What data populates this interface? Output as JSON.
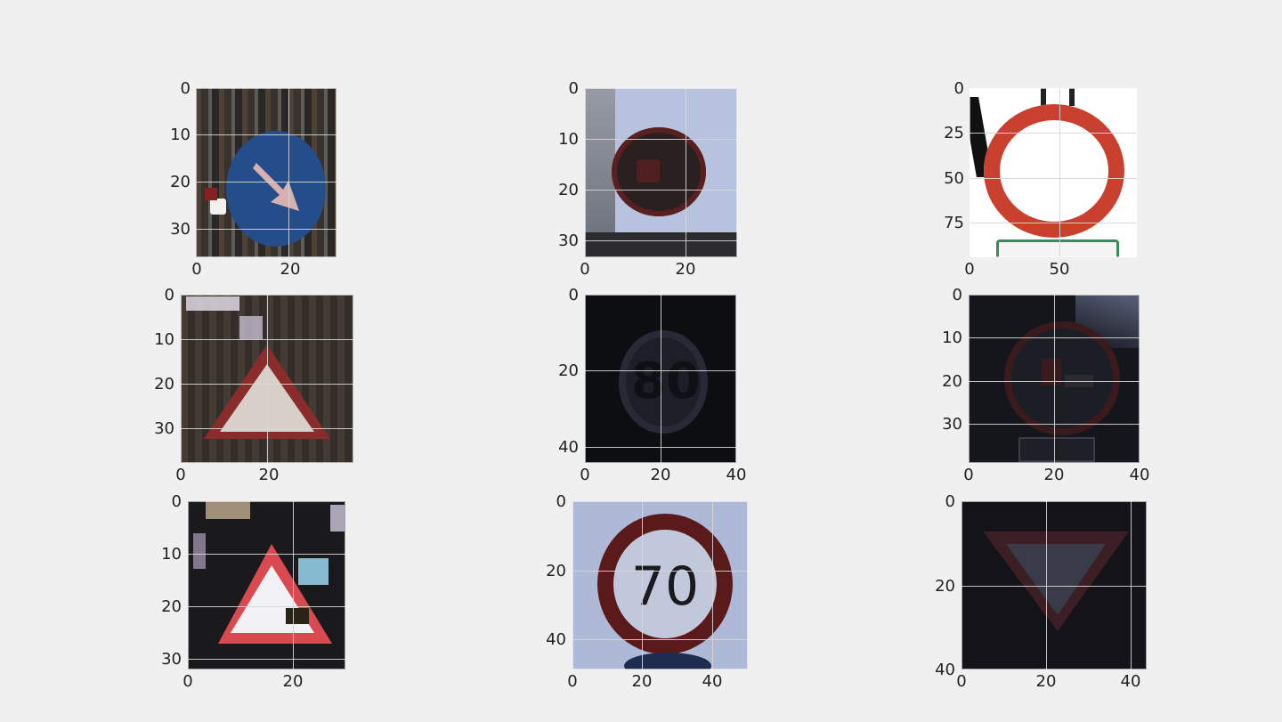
{
  "figure": {
    "background": "#f0f0f0",
    "panels": [
      {
        "id": "p1",
        "subject": "keep-right sign (blue circle, white diagonal arrow)",
        "extent": {
          "width": 30,
          "height": 36
        },
        "yticks": [
          "0",
          "10",
          "20",
          "30"
        ],
        "xticks": [
          "0",
          "20"
        ],
        "colors": {
          "bg": "#2c2a2a",
          "sign": "#244e8a",
          "arrow": "#d8b0b0",
          "accent": "#f4f0ee"
        }
      },
      {
        "id": "p2",
        "subject": "dark round prohibitory sign against pale sky",
        "extent": {
          "width": 30,
          "height": 33
        },
        "yticks": [
          "0",
          "10",
          "20",
          "30"
        ],
        "xticks": [
          "0",
          "20"
        ],
        "colors": {
          "bg": "#b7c3de",
          "sign": "#2a2020",
          "ring": "#5a1f1f"
        }
      },
      {
        "id": "p3",
        "subject": "no-vehicles sign (red ring, white center)",
        "extent": {
          "width": 90,
          "height": 95
        },
        "yticks": [
          "0",
          "25",
          "50",
          "75"
        ],
        "xticks": [
          "0",
          "50"
        ],
        "colors": {
          "bg": "#ffffff",
          "ring": "#c9412e",
          "center": "#ffffff"
        }
      },
      {
        "id": "p4",
        "subject": "warning triangle in dark foliage",
        "extent": {
          "width": 38,
          "height": 38
        },
        "yticks": [
          "0",
          "10",
          "20",
          "30"
        ],
        "xticks": [
          "0",
          "20"
        ],
        "colors": {
          "bg": "#3a3430",
          "triangle": "#8a2c2c",
          "inner": "#d8cfc8"
        }
      },
      {
        "id": "p5",
        "subject": "very dark speed limit 80 sign",
        "extent": {
          "width": 40,
          "height": 44
        },
        "yticks": [
          "0",
          "20",
          "40"
        ],
        "xticks": [
          "0",
          "20",
          "40"
        ],
        "colors": {
          "bg": "#0d0e12",
          "sign": "#222630"
        }
      },
      {
        "id": "p6",
        "subject": "dark no-trucks-overtaking sign",
        "extent": {
          "width": 40,
          "height": 39
        },
        "yticks": [
          "0",
          "10",
          "20",
          "30"
        ],
        "xticks": [
          "0",
          "20",
          "40"
        ],
        "colors": {
          "bg": "#14161c",
          "ring": "#3a1a1c",
          "inner": "#1c1e26"
        }
      },
      {
        "id": "p7",
        "subject": "bright warning triangle with noisy pixels",
        "extent": {
          "width": 30,
          "height": 32
        },
        "yticks": [
          "0",
          "10",
          "20",
          "30"
        ],
        "xticks": [
          "0",
          "20"
        ],
        "colors": {
          "bg": "#1a1a1c",
          "triangle": "#d84a50",
          "inner": "#f2f2f6"
        }
      },
      {
        "id": "p8",
        "subject": "speed limit 70 sign",
        "extent": {
          "width": 50,
          "height": 48
        },
        "yticks": [
          "0",
          "20",
          "40"
        ],
        "xticks": [
          "0",
          "20",
          "40"
        ],
        "colors": {
          "bg": "#aeb9d8",
          "ring": "#5a1a1a",
          "inner": "#c2c8dc",
          "text": "#1a1a20"
        }
      },
      {
        "id": "p9",
        "subject": "dark yield sign (inverted triangle)",
        "extent": {
          "width": 44,
          "height": 40
        },
        "yticks": [
          "0",
          "20",
          "40"
        ],
        "xticks": [
          "0",
          "20",
          "40"
        ],
        "colors": {
          "bg": "#14131a",
          "triangle": "#3c1f24",
          "inner": "#3a3b48"
        }
      }
    ]
  }
}
